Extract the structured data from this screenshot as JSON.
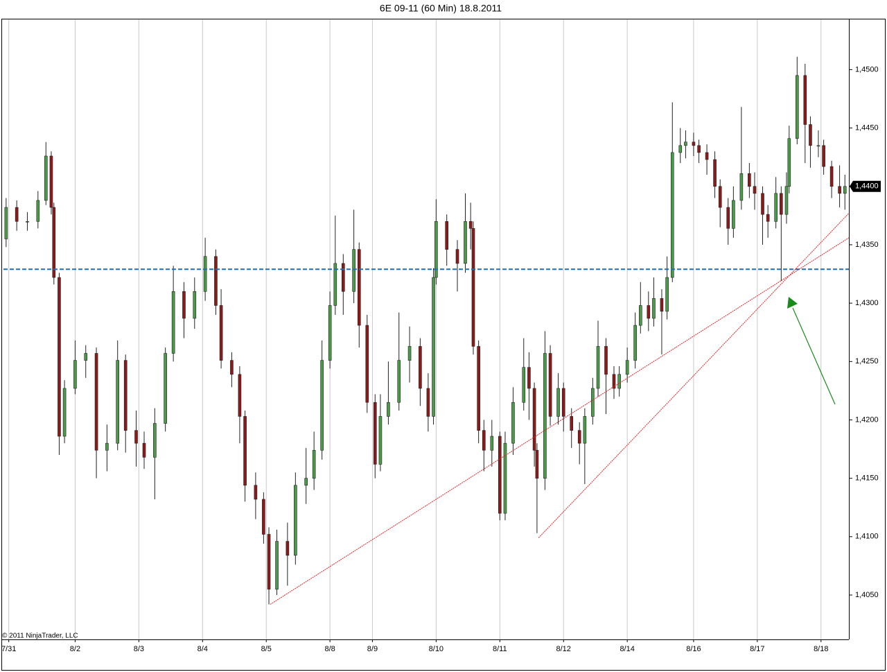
{
  "chart_data": {
    "type": "candlestick",
    "title": "6E 09-11 (60 Min)  18.8.2011",
    "copyright": "© 2011 NinjaTrader, LLC",
    "up_color": "#4a9a4a",
    "down_color": "#8b1a1a",
    "x": [
      1,
      5,
      9,
      13,
      16,
      18,
      19,
      21,
      23,
      27,
      31,
      35,
      39,
      43,
      46,
      50,
      53,
      57,
      61,
      64,
      68,
      72,
      76,
      80,
      82,
      86,
      89,
      91,
      95,
      98,
      100,
      103,
      107,
      110,
      114,
      117,
      120,
      123,
      125,
      128,
      132,
      134,
      137,
      140,
      142,
      145,
      149,
      153,
      157,
      160,
      162,
      163,
      167,
      171,
      174,
      176,
      177,
      179,
      181,
      184,
      187,
      189,
      192,
      196,
      198,
      200,
      201,
      204,
      206,
      209,
      211,
      214,
      217,
      219,
      222,
      224,
      227,
      230,
      232,
      235,
      238,
      240,
      243,
      245,
      248,
      250,
      252,
      255,
      257,
      260,
      262,
      265,
      268,
      270,
      273,
      275,
      278,
      281,
      283,
      286,
      288,
      291,
      293,
      295,
      296,
      299,
      302,
      304,
      307,
      309,
      312,
      315,
      317
    ],
    "open": [
      1.4355,
      1.4382,
      1.437,
      1.437,
      1.4388,
      1.4426,
      1.4382,
      1.4322,
      1.4186,
      1.4227,
      1.4251,
      1.4257,
      1.4174,
      1.418,
      1.4251,
      1.4191,
      1.418,
      1.4168,
      1.4197,
      1.4257,
      1.431,
      1.4287,
      1.431,
      1.434,
      1.4298,
      1.4251,
      1.4239,
      1.4203,
      1.4144,
      1.4132,
      1.4102,
      1.4055,
      1.4096,
      1.4084,
      1.4144,
      1.415,
      1.4174,
      1.4251,
      1.4298,
      1.4334,
      1.431,
      1.4346,
      1.4281,
      1.4215,
      1.4162,
      1.4203,
      1.4215,
      1.4251,
      1.4263,
      1.4227,
      1.4203,
      1.4322,
      1.437,
      1.4346,
      1.4334,
      1.437,
      1.4364,
      1.4263,
      1.4191,
      1.4174,
      1.4186,
      1.412,
      1.418,
      1.4215,
      1.4245,
      1.4227,
      1.4174,
      1.415,
      1.4257,
      1.4203,
      1.4227,
      1.4203,
      1.4191,
      1.418,
      1.4203,
      1.4227,
      1.4263,
      1.4239,
      1.4227,
      1.4239,
      1.4251,
      1.4281,
      1.4298,
      1.4287,
      1.4304,
      1.4293,
      1.4322,
      1.4429,
      1.4435,
      1.4438,
      1.4435,
      1.4429,
      1.4423,
      1.44,
      1.4382,
      1.4364,
      1.4388,
      1.4411,
      1.44,
      1.4394,
      1.4376,
      1.437,
      1.4394,
      1.4376,
      1.44,
      1.4441,
      1.4495,
      1.4453,
      1.4435,
      1.4435,
      1.4417,
      1.44,
      1.4394
    ],
    "high": [
      1.439,
      1.4388,
      1.4378,
      1.4396,
      1.4438,
      1.443,
      1.4386,
      1.4326,
      1.4234,
      1.4268,
      1.4264,
      1.4262,
      1.4196,
      1.4268,
      1.4256,
      1.4208,
      1.419,
      1.421,
      1.4262,
      1.4332,
      1.4318,
      1.4322,
      1.4356,
      1.4346,
      1.4312,
      1.4258,
      1.4246,
      1.4208,
      1.4155,
      1.4138,
      1.4108,
      1.4106,
      1.4112,
      1.4155,
      1.4176,
      1.419,
      1.4268,
      1.431,
      1.4375,
      1.4342,
      1.438,
      1.4352,
      1.429,
      1.4222,
      1.4222,
      1.425,
      1.4292,
      1.428,
      1.427,
      1.424,
      1.433,
      1.4389,
      1.4376,
      1.4354,
      1.4394,
      1.4386,
      1.437,
      1.4268,
      1.42,
      1.42,
      1.419,
      1.419,
      1.4228,
      1.427,
      1.4258,
      1.4232,
      1.418,
      1.4276,
      1.4264,
      1.424,
      1.4232,
      1.421,
      1.4198,
      1.421,
      1.4236,
      1.4285,
      1.427,
      1.4246,
      1.4246,
      1.4262,
      1.4292,
      1.4318,
      1.431,
      1.4322,
      1.4312,
      1.434,
      1.4472,
      1.445,
      1.4448,
      1.4446,
      1.444,
      1.4436,
      1.443,
      1.4406,
      1.439,
      1.44,
      1.4468,
      1.442,
      1.4412,
      1.44,
      1.4384,
      1.4408,
      1.44,
      1.4412,
      1.4452,
      1.4511,
      1.4505,
      1.446,
      1.4448,
      1.444,
      1.4422,
      1.4418,
      1.441
    ],
    "low": [
      1.4348,
      1.4362,
      1.4362,
      1.4364,
      1.4384,
      1.4376,
      1.4316,
      1.417,
      1.418,
      1.4222,
      1.4236,
      1.415,
      1.4156,
      1.4174,
      1.4172,
      1.416,
      1.4158,
      1.4132,
      1.419,
      1.425,
      1.427,
      1.4278,
      1.4302,
      1.429,
      1.4244,
      1.4228,
      1.418,
      1.413,
      1.4115,
      1.4094,
      1.4042,
      1.405,
      1.4058,
      1.4076,
      1.4128,
      1.414,
      1.4166,
      1.4244,
      1.429,
      1.429,
      1.43,
      1.4262,
      1.4206,
      1.415,
      1.4156,
      1.4196,
      1.4208,
      1.4232,
      1.4212,
      1.419,
      1.4196,
      1.4316,
      1.4332,
      1.431,
      1.4326,
      1.4346,
      1.4256,
      1.418,
      1.4156,
      1.416,
      1.4114,
      1.4114,
      1.417,
      1.4208,
      1.42,
      1.416,
      1.4103,
      1.414,
      1.4195,
      1.4196,
      1.419,
      1.4176,
      1.4162,
      1.4145,
      1.4196,
      1.422,
      1.4205,
      1.4218,
      1.422,
      1.4232,
      1.4244,
      1.4274,
      1.4276,
      1.428,
      1.4256,
      1.4286,
      1.4318,
      1.442,
      1.4424,
      1.4426,
      1.442,
      1.441,
      1.439,
      1.4365,
      1.435,
      1.4356,
      1.438,
      1.439,
      1.438,
      1.435,
      1.4356,
      1.4364,
      1.4319,
      1.4368,
      1.4394,
      1.4436,
      1.442,
      1.4416,
      1.4425,
      1.441,
      1.439,
      1.4382,
      1.438
    ],
    "close": [
      1.4382,
      1.437,
      1.437,
      1.4388,
      1.4426,
      1.4382,
      1.4322,
      1.4186,
      1.4227,
      1.4251,
      1.4257,
      1.4174,
      1.418,
      1.4251,
      1.4191,
      1.418,
      1.4168,
      1.4197,
      1.4257,
      1.431,
      1.4287,
      1.431,
      1.434,
      1.4298,
      1.4251,
      1.4239,
      1.4203,
      1.4144,
      1.4132,
      1.4102,
      1.4055,
      1.4096,
      1.4084,
      1.4144,
      1.415,
      1.4174,
      1.4251,
      1.4298,
      1.4334,
      1.431,
      1.4346,
      1.4281,
      1.4215,
      1.4162,
      1.4203,
      1.4215,
      1.4251,
      1.4263,
      1.4227,
      1.4203,
      1.4322,
      1.437,
      1.4346,
      1.4334,
      1.437,
      1.4364,
      1.4263,
      1.4191,
      1.4174,
      1.4186,
      1.412,
      1.418,
      1.4215,
      1.4245,
      1.4227,
      1.4174,
      1.415,
      1.4257,
      1.4203,
      1.4227,
      1.4203,
      1.4191,
      1.418,
      1.4203,
      1.4227,
      1.4263,
      1.4239,
      1.4227,
      1.4239,
      1.4251,
      1.4281,
      1.4298,
      1.4287,
      1.4304,
      1.4293,
      1.4322,
      1.4429,
      1.4435,
      1.4438,
      1.4435,
      1.4429,
      1.4423,
      1.44,
      1.4382,
      1.4364,
      1.4388,
      1.4411,
      1.44,
      1.4394,
      1.4376,
      1.437,
      1.4394,
      1.4376,
      1.44,
      1.4441,
      1.4495,
      1.4453,
      1.4435,
      1.4435,
      1.4417,
      1.44,
      1.4394,
      1.44
    ],
    "xlim": [
      0,
      318.5
    ],
    "xticks": [
      {
        "value": 2,
        "label": "7/31"
      },
      {
        "value": 27,
        "label": "8/2"
      },
      {
        "value": 51,
        "label": "8/3"
      },
      {
        "value": 75,
        "label": "8/4"
      },
      {
        "value": 99,
        "label": "8/5"
      },
      {
        "value": 123,
        "label": "8/8"
      },
      {
        "value": 139,
        "label": "8/9"
      },
      {
        "value": 163,
        "label": "8/10"
      },
      {
        "value": 187,
        "label": "8/11"
      },
      {
        "value": 211,
        "label": "8/12"
      },
      {
        "value": 235,
        "label": "8/14"
      },
      {
        "value": 260,
        "label": "8/16"
      },
      {
        "value": 284,
        "label": "8/17"
      },
      {
        "value": 308,
        "label": "8/18"
      }
    ],
    "ylim": [
      1.4012,
      1.4543
    ],
    "yticks": [
      {
        "value": 1.405,
        "label": "1,4050"
      },
      {
        "value": 1.41,
        "label": "1,4100"
      },
      {
        "value": 1.415,
        "label": "1,4150"
      },
      {
        "value": 1.42,
        "label": "1,4200"
      },
      {
        "value": 1.425,
        "label": "1,4250"
      },
      {
        "value": 1.43,
        "label": "1,4300"
      },
      {
        "value": 1.435,
        "label": "1,4350"
      },
      {
        "value": 1.44,
        "label": "1,4400"
      },
      {
        "value": 1.445,
        "label": "1,4450"
      },
      {
        "value": 1.45,
        "label": "1,4500"
      }
    ],
    "grid": "x",
    "last_price": {
      "value": 1.44,
      "label": "1,4400"
    },
    "hline": {
      "value": 1.4329,
      "color": "#1f6fb5"
    },
    "trendlines": [
      {
        "x": [
          100.5,
          318.5
        ],
        "y": [
          1.4042,
          1.4356
        ],
        "color": "#e02020"
      },
      {
        "x": [
          201.6,
          318.5
        ],
        "y": [
          1.4099,
          1.4377
        ],
        "color": "#e02020"
      }
    ]
  }
}
